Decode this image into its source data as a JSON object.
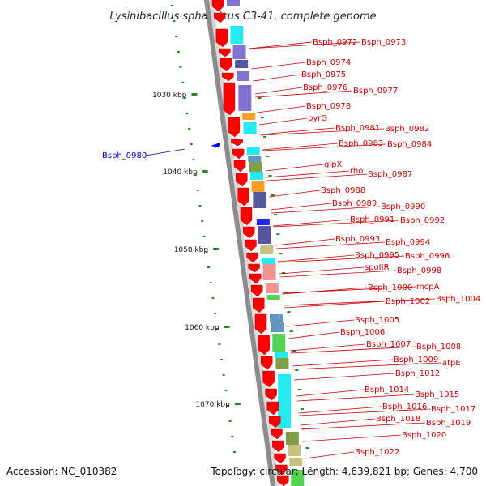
{
  "title": "Lysinibacillus sphaericus C3-41, complete genome",
  "footer": {
    "accession": "Accession: NC_010382",
    "topology": "Topology: circular; Length: 4,639,821 bp; Genes: 4,700"
  },
  "ticks": [
    "1030 kbp",
    "1040 kbp",
    "1050 kbp",
    "1060 kbp",
    "1070 kbp"
  ],
  "labels": [
    {
      "text": "Bsph_0972",
      "strand": "plus"
    },
    {
      "text": "Bsph_0973",
      "strand": "plus"
    },
    {
      "text": "Bsph_0974",
      "strand": "plus"
    },
    {
      "text": "Bsph_0975",
      "strand": "plus"
    },
    {
      "text": "Bsph_0976",
      "strand": "plus"
    },
    {
      "text": "Bsph_0977",
      "strand": "plus"
    },
    {
      "text": "Bsph_0978",
      "strand": "plus"
    },
    {
      "text": "pyrG",
      "strand": "plus"
    },
    {
      "text": "Bsph_0981",
      "strand": "plus"
    },
    {
      "text": "Bsph_0982",
      "strand": "plus"
    },
    {
      "text": "Bsph_0983",
      "strand": "plus"
    },
    {
      "text": "Bsph_0984",
      "strand": "plus"
    },
    {
      "text": "glpX",
      "strand": "plus"
    },
    {
      "text": "rho",
      "strand": "plus"
    },
    {
      "text": "Bsph_0987",
      "strand": "plus"
    },
    {
      "text": "Bsph_0988",
      "strand": "plus"
    },
    {
      "text": "Bsph_0989",
      "strand": "plus"
    },
    {
      "text": "Bsph_0990",
      "strand": "plus"
    },
    {
      "text": "Bsph_0991",
      "strand": "plus"
    },
    {
      "text": "Bsph_0992",
      "strand": "plus"
    },
    {
      "text": "Bsph_0993",
      "strand": "plus"
    },
    {
      "text": "Bsph_0994",
      "strand": "plus"
    },
    {
      "text": "Bsph_0995",
      "strand": "plus"
    },
    {
      "text": "Bsph_0996",
      "strand": "plus"
    },
    {
      "text": "spoIIR",
      "strand": "plus"
    },
    {
      "text": "Bsph_0998",
      "strand": "plus"
    },
    {
      "text": "Bsph_1000",
      "strand": "plus"
    },
    {
      "text": "mcpA",
      "strand": "plus"
    },
    {
      "text": "Bsph_1002",
      "strand": "plus"
    },
    {
      "text": "Bsph_1004",
      "strand": "plus"
    },
    {
      "text": "Bsph_1005",
      "strand": "plus"
    },
    {
      "text": "Bsph_1006",
      "strand": "plus"
    },
    {
      "text": "Bsph_1007",
      "strand": "plus"
    },
    {
      "text": "Bsph_1008",
      "strand": "plus"
    },
    {
      "text": "Bsph_1009",
      "strand": "plus"
    },
    {
      "text": "atpE",
      "strand": "plus"
    },
    {
      "text": "Bsph_1012",
      "strand": "plus"
    },
    {
      "text": "Bsph_1014",
      "strand": "plus"
    },
    {
      "text": "Bsph_1015",
      "strand": "plus"
    },
    {
      "text": "Bsph_1016",
      "strand": "plus"
    },
    {
      "text": "Bsph_1017",
      "strand": "plus"
    },
    {
      "text": "Bsph_1018",
      "strand": "plus"
    },
    {
      "text": "Bsph_1019",
      "strand": "plus"
    },
    {
      "text": "Bsph_1020",
      "strand": "plus"
    },
    {
      "text": "Bsph_1022",
      "strand": "plus"
    },
    {
      "text": "Bsph_0980",
      "strand": "minus"
    }
  ],
  "colors": {
    "gene_red": "#ff0000",
    "backbone": "#888888",
    "label_red": "#cc0000",
    "label_blue": "#0000cc",
    "gc_green": "#228b22",
    "cog_cyan": "#00e5ee",
    "cog_purple": "#6a5acd",
    "cog_navy": "#3a3a8c",
    "cog_orange": "#ff8c00",
    "cog_olive": "#6b8e23",
    "cog_pink": "#f08080",
    "cog_green": "#32cd32",
    "cog_blue": "#0000ff",
    "cog_khaki": "#bdb76b",
    "cog_slate": "#4682b4"
  }
}
